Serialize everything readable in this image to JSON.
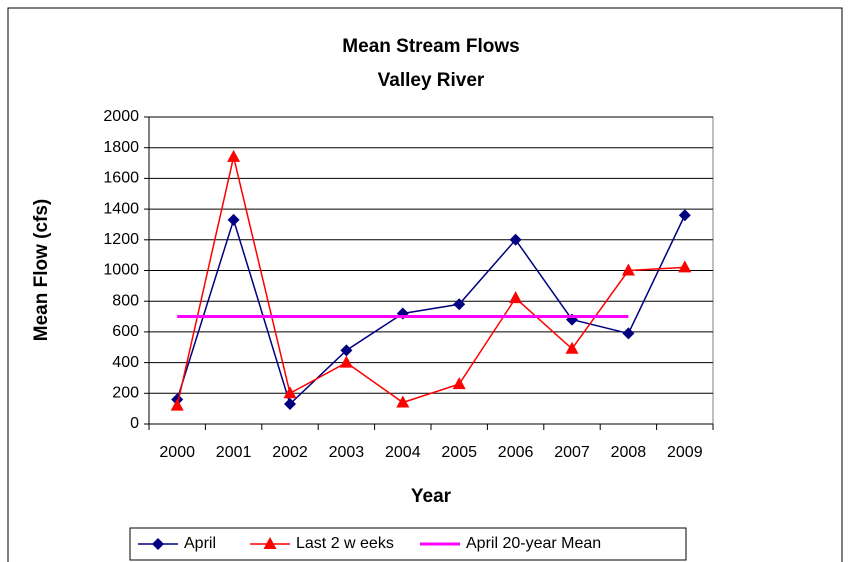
{
  "chart_data": {
    "type": "line",
    "title": "Mean Stream Flows",
    "subtitle": "Valley River",
    "x_label": "Year",
    "y_label": "Mean Flow (cfs)",
    "categories": [
      "2000",
      "2001",
      "2002",
      "2003",
      "2004",
      "2005",
      "2006",
      "2007",
      "2008",
      "2009"
    ],
    "series": [
      {
        "name": "April",
        "color": "#000080",
        "marker": "diamond",
        "values": [
          160,
          1330,
          130,
          480,
          720,
          780,
          1200,
          680,
          590,
          1360
        ]
      },
      {
        "name": "Last 2 w eeks",
        "color": "#ff0000",
        "marker": "triangle",
        "values": [
          120,
          1740,
          200,
          400,
          140,
          260,
          820,
          490,
          1000,
          1020
        ]
      },
      {
        "name": "April 20-year Mean",
        "color": "#ff00ff",
        "marker": "none",
        "values": [
          700,
          700,
          700,
          700,
          700,
          700,
          700,
          700,
          700,
          null
        ]
      }
    ],
    "ylim": [
      0,
      2000
    ],
    "yticks": [
      0,
      200,
      400,
      600,
      800,
      1000,
      1200,
      1400,
      1600,
      1800,
      2000
    ],
    "grid": true,
    "legend": "bottom"
  }
}
